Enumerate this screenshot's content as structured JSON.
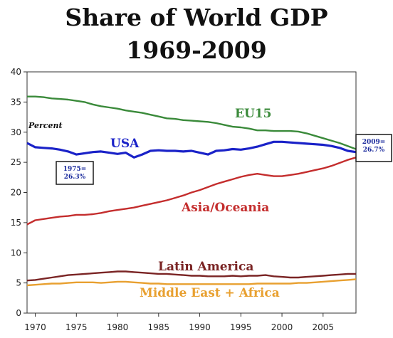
{
  "chart_data": {
    "type": "line",
    "title_lines": [
      "Share of World GDP",
      "1969-2009"
    ],
    "ylabel": "Percent",
    "ylim": [
      0,
      40
    ],
    "yticks": [
      0,
      5,
      10,
      15,
      20,
      25,
      30,
      35,
      40
    ],
    "xlim": [
      1969,
      2009
    ],
    "xticks": [
      1970,
      1975,
      1980,
      1985,
      1990,
      1995,
      2000,
      2005
    ],
    "grid": false,
    "legend": "labels placed next to lines",
    "x": [
      1969,
      1970,
      1971,
      1972,
      1973,
      1974,
      1975,
      1976,
      1977,
      1978,
      1979,
      1980,
      1981,
      1982,
      1983,
      1984,
      1985,
      1986,
      1987,
      1988,
      1989,
      1990,
      1991,
      1992,
      1993,
      1994,
      1995,
      1996,
      1997,
      1998,
      1999,
      2000,
      2001,
      2002,
      2003,
      2004,
      2005,
      2006,
      2007,
      2008,
      2009
    ],
    "series": [
      {
        "name": "EU15",
        "color": "#3a8a3a",
        "values": [
          35.9,
          35.9,
          35.8,
          35.6,
          35.5,
          35.4,
          35.2,
          35.0,
          34.6,
          34.3,
          34.1,
          33.9,
          33.6,
          33.4,
          33.2,
          32.9,
          32.6,
          32.3,
          32.2,
          32.0,
          31.9,
          31.8,
          31.7,
          31.5,
          31.2,
          30.9,
          30.8,
          30.6,
          30.3,
          30.3,
          30.2,
          30.2,
          30.2,
          30.1,
          29.8,
          29.4,
          29.0,
          28.6,
          28.2,
          27.7,
          27.2
        ]
      },
      {
        "name": "USA",
        "color": "#1a22c8",
        "values": [
          28.2,
          27.5,
          27.4,
          27.3,
          27.1,
          26.8,
          26.3,
          26.5,
          26.7,
          26.8,
          26.6,
          26.4,
          26.6,
          25.8,
          26.3,
          26.9,
          27.0,
          26.9,
          26.9,
          26.8,
          26.9,
          26.6,
          26.3,
          26.9,
          27.0,
          27.2,
          27.1,
          27.3,
          27.6,
          28.0,
          28.4,
          28.4,
          28.3,
          28.2,
          28.1,
          28.0,
          27.9,
          27.7,
          27.4,
          26.9,
          26.7
        ]
      },
      {
        "name": "Asia/Oceania",
        "color": "#c42d2d",
        "values": [
          14.7,
          15.4,
          15.6,
          15.8,
          16.0,
          16.1,
          16.3,
          16.3,
          16.4,
          16.6,
          16.9,
          17.1,
          17.3,
          17.5,
          17.8,
          18.1,
          18.4,
          18.7,
          19.1,
          19.5,
          20.0,
          20.4,
          20.9,
          21.4,
          21.8,
          22.2,
          22.6,
          22.9,
          23.1,
          22.9,
          22.7,
          22.7,
          22.9,
          23.1,
          23.4,
          23.7,
          24.0,
          24.4,
          24.9,
          25.4,
          25.8
        ]
      },
      {
        "name": "Latin America",
        "color": "#7a2424",
        "values": [
          5.4,
          5.5,
          5.7,
          5.9,
          6.1,
          6.3,
          6.4,
          6.5,
          6.6,
          6.7,
          6.8,
          6.9,
          6.9,
          6.8,
          6.7,
          6.6,
          6.5,
          6.5,
          6.4,
          6.3,
          6.2,
          6.2,
          6.1,
          6.1,
          6.1,
          6.2,
          6.1,
          6.2,
          6.2,
          6.3,
          6.1,
          6.0,
          5.9,
          5.9,
          6.0,
          6.1,
          6.2,
          6.3,
          6.4,
          6.5,
          6.5
        ]
      },
      {
        "name": "Middle East + Africa",
        "color": "#e8a030",
        "values": [
          4.6,
          4.7,
          4.8,
          4.9,
          4.9,
          5.0,
          5.1,
          5.1,
          5.1,
          5.0,
          5.1,
          5.2,
          5.2,
          5.1,
          5.0,
          4.9,
          4.9,
          4.8,
          4.8,
          4.8,
          4.8,
          4.8,
          4.8,
          4.8,
          4.8,
          4.8,
          4.8,
          4.8,
          4.9,
          4.9,
          4.9,
          4.9,
          4.9,
          5.0,
          5.0,
          5.1,
          5.2,
          5.3,
          5.4,
          5.5,
          5.6
        ]
      }
    ],
    "annotations": [
      {
        "lines": [
          "1975=",
          "26.3%"
        ]
      },
      {
        "lines": [
          "2009=",
          "26.7%"
        ]
      }
    ]
  }
}
